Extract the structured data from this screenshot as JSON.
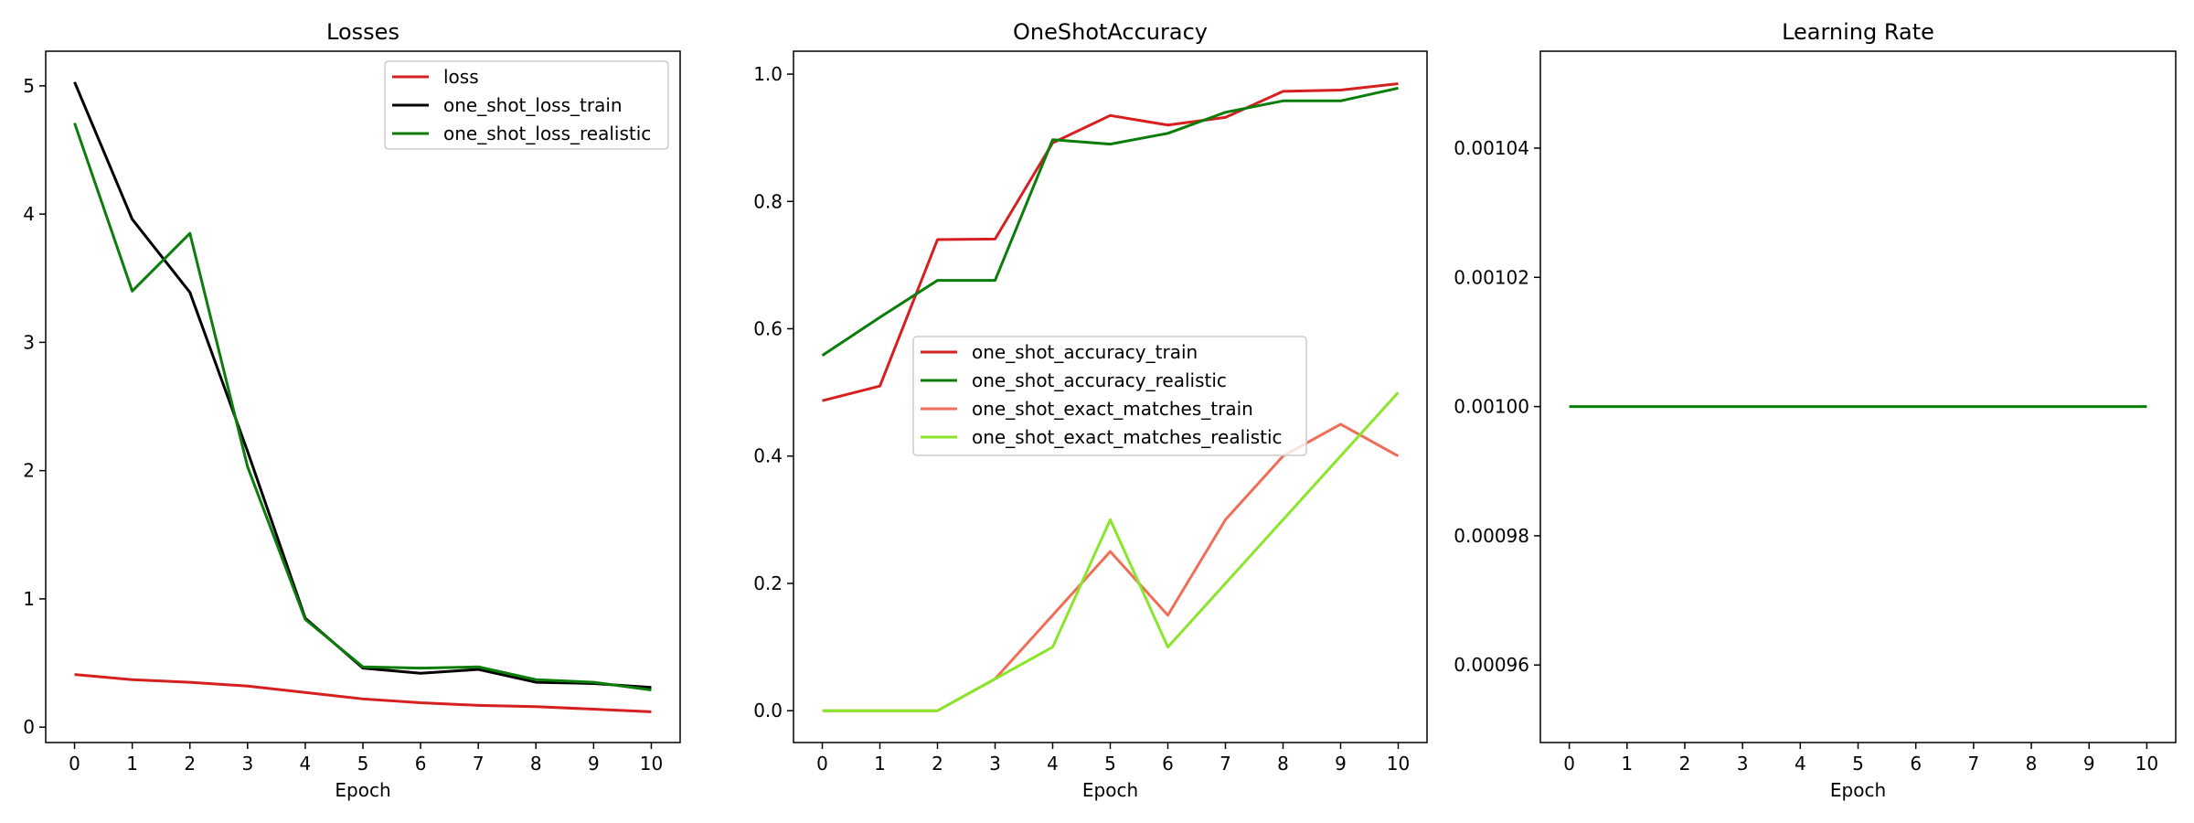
{
  "chart_data": [
    {
      "type": "line",
      "title": "Losses",
      "xlabel": "Epoch",
      "ylabel": "",
      "x": [
        0,
        1,
        2,
        3,
        4,
        5,
        6,
        7,
        8,
        9,
        10
      ],
      "xlim": [
        -0.5,
        10.5
      ],
      "ylim": [
        -0.12,
        5.27
      ],
      "xticks": [
        0,
        1,
        2,
        3,
        4,
        5,
        6,
        7,
        8,
        9,
        10
      ],
      "yticks": [
        0,
        1,
        2,
        3,
        4,
        5
      ],
      "ytick_labels": [
        "0",
        "1",
        "2",
        "3",
        "4",
        "5"
      ],
      "grid": false,
      "legend_position": "upper right",
      "series": [
        {
          "name": "loss",
          "color": "#d62020",
          "values": [
            0.41,
            0.37,
            0.35,
            0.32,
            0.27,
            0.22,
            0.19,
            0.17,
            0.16,
            0.14,
            0.12
          ]
        },
        {
          "name": "one_shot_loss_train",
          "color": "#000000",
          "values": [
            5.03,
            3.96,
            3.39,
            2.15,
            0.85,
            0.46,
            0.42,
            0.45,
            0.35,
            0.34,
            0.31
          ]
        },
        {
          "name": "one_shot_loss_realistic",
          "color": "#0a7d0a",
          "values": [
            4.71,
            3.4,
            3.85,
            2.03,
            0.84,
            0.47,
            0.46,
            0.47,
            0.37,
            0.35,
            0.29
          ]
        }
      ]
    },
    {
      "type": "line",
      "title": "OneShotAccuracy",
      "xlabel": "Epoch",
      "ylabel": "",
      "x": [
        0,
        1,
        2,
        3,
        4,
        5,
        6,
        7,
        8,
        9,
        10
      ],
      "xlim": [
        -0.5,
        10.5
      ],
      "ylim": [
        -0.05,
        1.036
      ],
      "xticks": [
        0,
        1,
        2,
        3,
        4,
        5,
        6,
        7,
        8,
        9,
        10
      ],
      "yticks": [
        0.0,
        0.2,
        0.4,
        0.6,
        0.8,
        1.0
      ],
      "ytick_labels": [
        "0.0",
        "0.2",
        "0.4",
        "0.6",
        "0.8",
        "1.0"
      ],
      "grid": false,
      "legend_position": "center",
      "series": [
        {
          "name": "one_shot_accuracy_train",
          "color": "#d62020",
          "values": [
            0.487,
            0.51,
            0.74,
            0.741,
            0.892,
            0.935,
            0.92,
            0.932,
            0.973,
            0.975,
            0.985
          ]
        },
        {
          "name": "one_shot_accuracy_realistic",
          "color": "#0a7d0a",
          "values": [
            0.558,
            0.618,
            0.676,
            0.676,
            0.897,
            0.89,
            0.907,
            0.94,
            0.958,
            0.958,
            0.978
          ]
        },
        {
          "name": "one_shot_exact_matches_train",
          "color": "#f06e58",
          "values": [
            0.0,
            0.0,
            0.0,
            0.05,
            0.15,
            0.25,
            0.15,
            0.3,
            0.4,
            0.45,
            0.4
          ]
        },
        {
          "name": "one_shot_exact_matches_realistic",
          "color": "#8ae62a",
          "values": [
            0.0,
            0.0,
            0.0,
            0.05,
            0.1,
            0.3,
            0.1,
            0.2,
            0.3,
            0.4,
            0.5
          ]
        }
      ]
    },
    {
      "type": "line",
      "title": "Learning Rate",
      "xlabel": "Epoch",
      "ylabel": "",
      "x": [
        0,
        1,
        2,
        3,
        4,
        5,
        6,
        7,
        8,
        9,
        10
      ],
      "xlim": [
        -0.5,
        10.5
      ],
      "ylim": [
        0.000948,
        0.001055
      ],
      "xticks": [
        0,
        1,
        2,
        3,
        4,
        5,
        6,
        7,
        8,
        9,
        10
      ],
      "yticks": [
        0.00096,
        0.00098,
        0.001,
        0.00102,
        0.00104
      ],
      "ytick_labels": [
        "0.00096",
        "0.00098",
        "0.00100",
        "0.00102",
        "0.00104"
      ],
      "grid": false,
      "legend_position": "none",
      "series": [
        {
          "color": "#0a7d0a",
          "values": [
            0.001,
            0.001,
            0.001,
            0.001,
            0.001,
            0.001,
            0.001,
            0.001,
            0.001,
            0.001,
            0.001
          ]
        }
      ]
    }
  ]
}
